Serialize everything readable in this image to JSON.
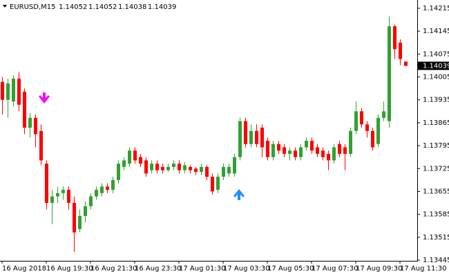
{
  "chart_data": {
    "type": "candlestick",
    "symbol": "EURUSD,M15",
    "categories": [
      "16 Aug 2018",
      null,
      null,
      null,
      null,
      null,
      null,
      null,
      "16 Aug 19:30",
      null,
      null,
      null,
      null,
      null,
      null,
      null,
      "16 Aug 21:30",
      null,
      null,
      null,
      null,
      null,
      null,
      null,
      "16 Aug 23:30",
      null,
      null,
      null,
      null,
      null,
      null,
      null,
      "17 Aug 01:30",
      null,
      null,
      null,
      null,
      null,
      null,
      null,
      "17 Aug 03:30",
      null,
      null,
      null,
      null,
      null,
      null,
      null,
      "17 Aug 05:30",
      null,
      null,
      null,
      null,
      null,
      null,
      null,
      "17 Aug 07:30",
      null,
      null,
      null,
      null,
      null,
      null,
      null,
      "17 Aug 09:30",
      null,
      null,
      null,
      null,
      null,
      null,
      null,
      "17 Aug 11:30",
      null
    ],
    "open": [
      1.1399,
      1.13935,
      1.1393,
      1.14,
      1.1396,
      1.1385,
      1.1388,
      1.1384,
      1.1374,
      1.1362,
      1.1364,
      1.1365,
      1.1366,
      1.1362,
      1.1354,
      1.1358,
      1.1361,
      1.1364,
      1.1365,
      1.1367,
      1.1366,
      1.1369,
      1.1373,
      1.1374,
      1.1378,
      1.1376,
      1.1375,
      1.1372,
      1.1374,
      1.1373,
      1.1372,
      1.1373,
      1.1374,
      1.1372,
      1.1373,
      1.13725,
      1.13715,
      1.1373,
      1.137,
      1.1366,
      1.137,
      1.1371,
      1.1371,
      1.1376,
      1.1387,
      1.138,
      1.1384,
      1.1385,
      1.1381,
      1.1376,
      1.138,
      1.1379,
      1.1377,
      1.1378,
      1.1376,
      1.1379,
      1.1381,
      1.1379,
      1.1378,
      1.1377,
      1.1375,
      1.138,
      1.1379,
      1.1377,
      1.1384,
      1.139,
      1.1386,
      1.1384,
      1.138,
      1.1388,
      1.1387,
      1.1416,
      1.1411,
      1.14052
    ],
    "high": [
      1.14005,
      1.14,
      1.1401,
      1.1402,
      1.1397,
      1.13895,
      1.1389,
      1.1386,
      1.1375,
      1.1366,
      1.1367,
      1.1367,
      1.1367,
      1.1364,
      1.136,
      1.13625,
      1.1365,
      1.1367,
      1.1368,
      1.1368,
      1.137,
      1.1375,
      1.1376,
      1.1379,
      1.1379,
      1.1377,
      1.1376,
      1.1375,
      1.1375,
      1.1374,
      1.1374,
      1.1375,
      1.1375,
      1.13745,
      1.13735,
      1.1373,
      1.1374,
      1.13735,
      1.1371,
      1.1371,
      1.1374,
      1.1374,
      1.1377,
      1.1388,
      1.1388,
      1.1386,
      1.1386,
      1.1386,
      1.1382,
      1.1381,
      1.1381,
      1.138,
      1.1379,
      1.1379,
      1.138,
      1.1382,
      1.1382,
      1.138,
      1.1379,
      1.1378,
      1.138,
      1.1381,
      1.138,
      1.1385,
      1.1393,
      1.1391,
      1.1387,
      1.1385,
      1.1389,
      1.1393,
      1.1419,
      1.14165,
      1.1412,
      1.14052
    ],
    "low": [
      1.1389,
      1.1388,
      1.13915,
      1.139,
      1.1383,
      1.1382,
      1.1379,
      1.13735,
      1.136,
      1.13555,
      1.1362,
      1.1363,
      1.136,
      1.1347,
      1.1353,
      1.1356,
      1.136,
      1.1363,
      1.1364,
      1.1365,
      1.1365,
      1.1368,
      1.1372,
      1.1373,
      1.1374,
      1.1373,
      1.137,
      1.1371,
      1.1371,
      1.1371,
      1.13715,
      1.1372,
      1.1371,
      1.1371,
      1.1371,
      1.13705,
      1.13705,
      1.1369,
      1.13645,
      1.1365,
      1.1369,
      1.137,
      1.137,
      1.1375,
      1.1379,
      1.1379,
      1.1379,
      1.1376,
      1.1375,
      1.1375,
      1.1377,
      1.1376,
      1.1375,
      1.1375,
      1.1375,
      1.1378,
      1.1377,
      1.1376,
      1.1375,
      1.1372,
      1.1374,
      1.1376,
      1.1372,
      1.1376,
      1.1383,
      1.1385,
      1.1382,
      1.1378,
      1.1379,
      1.1387,
      1.1385,
      1.1406,
      1.1404,
      1.14038
    ],
    "close": [
      1.13935,
      1.13985,
      1.14,
      1.1392,
      1.1385,
      1.1388,
      1.1383,
      1.1375,
      1.1362,
      1.1364,
      1.1365,
      1.1366,
      1.1362,
      1.1353,
      1.1358,
      1.1361,
      1.1364,
      1.1366,
      1.1367,
      1.1366,
      1.1369,
      1.1374,
      1.1375,
      1.1378,
      1.1375,
      1.1374,
      1.1371,
      1.1374,
      1.1372,
      1.1372,
      1.1373,
      1.1374,
      1.1372,
      1.13735,
      1.1372,
      1.13715,
      1.1373,
      1.137,
      1.13655,
      1.137,
      1.1373,
      1.1373,
      1.1376,
      1.1387,
      1.138,
      1.1384,
      1.138,
      1.1379,
      1.1376,
      1.138,
      1.1378,
      1.1377,
      1.1378,
      1.1376,
      1.1379,
      1.1381,
      1.1378,
      1.1377,
      1.1376,
      1.1375,
      1.1379,
      1.1377,
      1.1377,
      1.1384,
      1.139,
      1.1386,
      1.1384,
      1.1379,
      1.1388,
      1.139,
      1.1416,
      1.1409,
      1.1406,
      1.14039
    ],
    "up_color": "#32a032",
    "down_color": "#ff0000",
    "ylim": [
      1.13443,
      1.14236
    ],
    "yticks": [
      1.14215,
      1.14145,
      1.14075,
      1.14005,
      1.13935,
      1.13865,
      1.13795,
      1.13725,
      1.13655,
      1.13585,
      1.13515,
      1.13445
    ]
  }
}
